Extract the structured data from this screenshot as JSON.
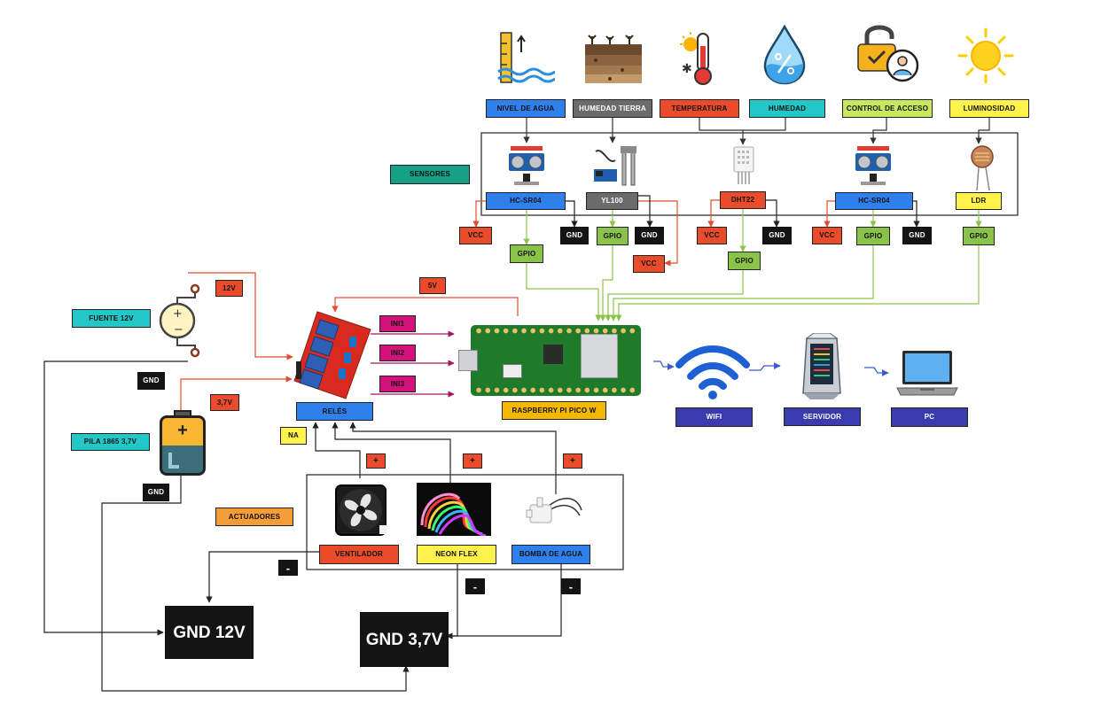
{
  "colors": {
    "blue": "#2f80ed",
    "grey": "#6b6b6b",
    "red": "#e94b2b",
    "cyan": "#22c7c7",
    "lime": "#c7e85f",
    "yellow": "#fff24a",
    "teal": "#16a085",
    "black": "#141414",
    "green": "#8bc34a",
    "magenta": "#d3137a",
    "orange": "#f5b800",
    "navy": "#3b3bb0",
    "amber": "#f29d38",
    "wire_red": "#e34a2e",
    "wire_green": "#8bc34a",
    "wire_dark": "#333333"
  },
  "sensors": {
    "group_label": "SENSORES",
    "categories": {
      "nivel_agua": "NIVEL DE AGUA",
      "humedad_tierra": "HUMEDAD TIERRA",
      "temperatura": "TEMPERATURA",
      "humedad": "HUMEDAD",
      "control_acceso": "CONTROL DE ACCESO",
      "luminosidad": "LUMINOSIDAD"
    },
    "modules": {
      "hcsr04_a": "HC-SR04",
      "yl100": "YL100",
      "dht22": "DHT22",
      "hcsr04_b": "HC-SR04",
      "ldr": "LDR"
    },
    "pins": {
      "vcc": "VCC",
      "gnd": "GND",
      "gpio": "GPIO"
    }
  },
  "power": {
    "fuente": "FUENTE 12V",
    "pila": "PILA 1865 3,7V",
    "v12": "12V",
    "v37": "3,7V",
    "v5": "5V",
    "gnd": "GND",
    "gnd12": "GND 12V",
    "gnd37": "GND 3,7V",
    "battery_plus": "+"
  },
  "relay": {
    "label": "RELÉS",
    "in1": "INI1",
    "in2": "INI2",
    "in3": "INI3",
    "na": "NA"
  },
  "pico": {
    "label": "RASPBERRY PI PICO W"
  },
  "network": {
    "wifi": "WIFI",
    "server": "SERVIDOR",
    "pc": "PC"
  },
  "actuators": {
    "group_label": "ACTUADORES",
    "ventilador": "VENTILADOR",
    "neon": "NEON FLEX",
    "bomba": "BOMBA DE AGUA",
    "plus": "+",
    "minus": "-"
  }
}
